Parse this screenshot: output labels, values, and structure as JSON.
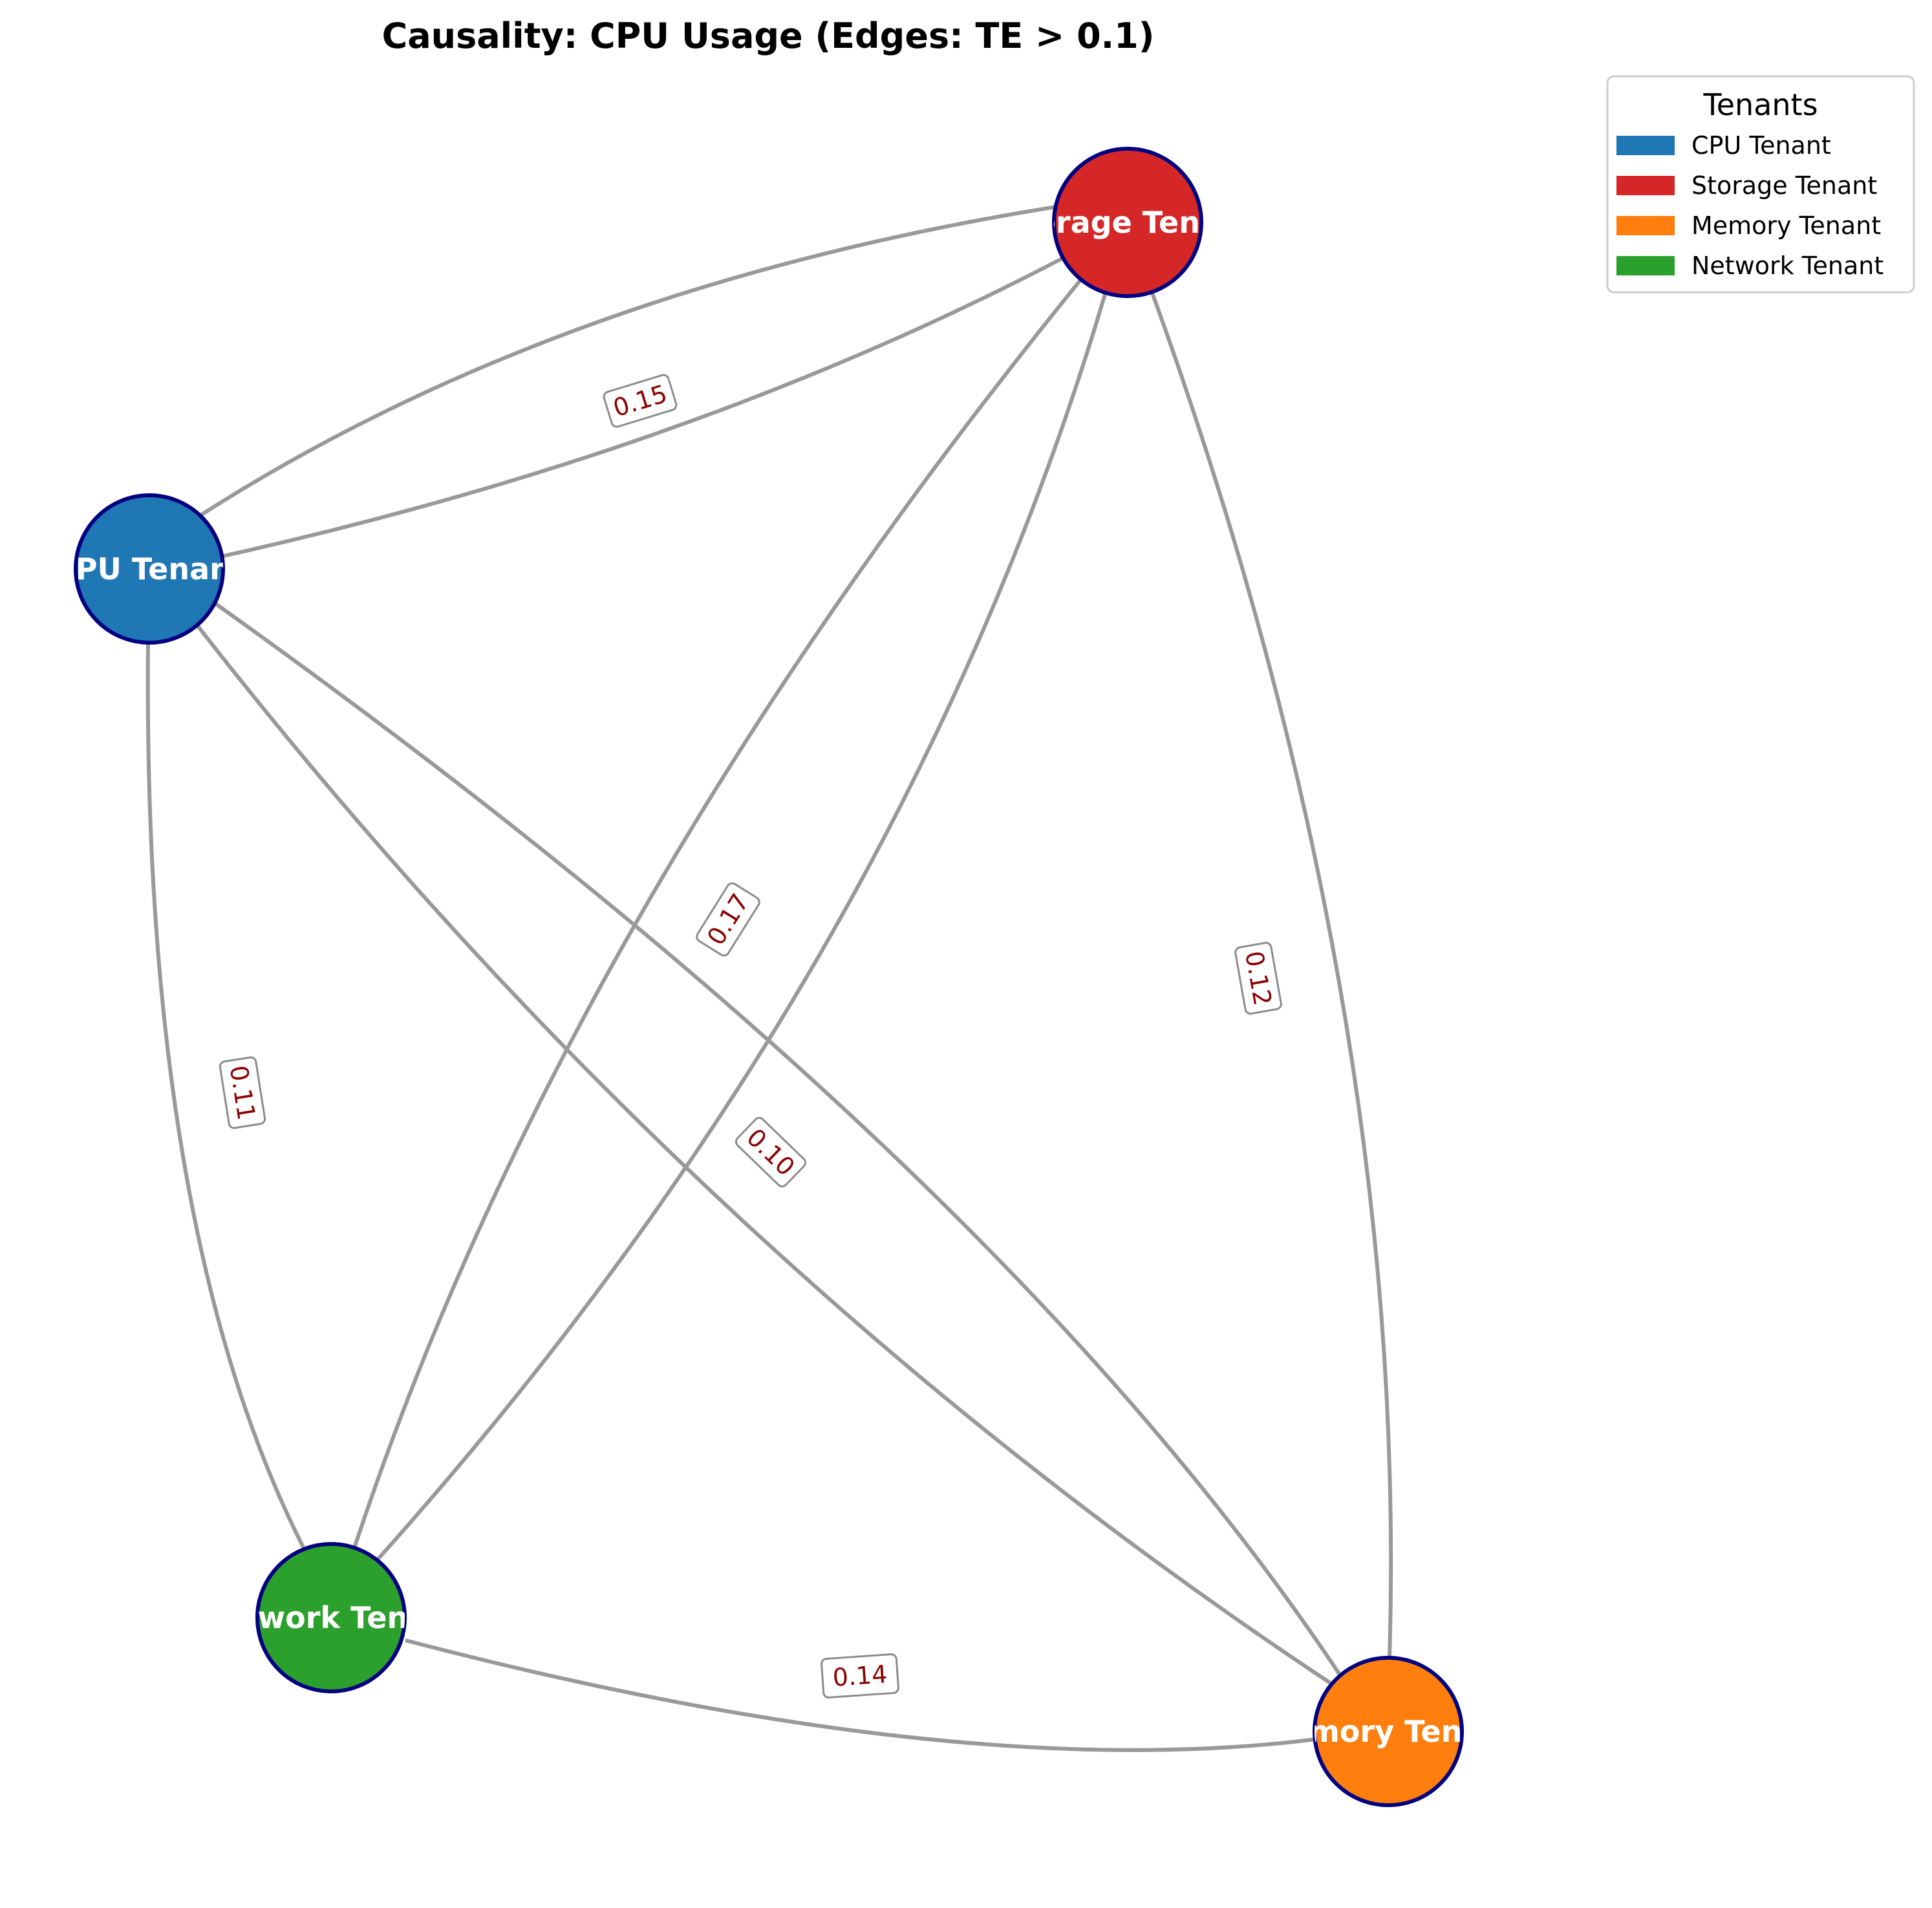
{
  "title": "Causality: CPU Usage (Edges: TE > 0.1)",
  "colors": {
    "cpu": "#1f77b4",
    "storage": "#d62728",
    "memory": "#ff7f0e",
    "network": "#2ca02c",
    "node_border": "#000080",
    "edge": "#999999",
    "edge_label": "#8b0000"
  },
  "nodes": [
    {
      "id": "cpu",
      "label": "CPU Tenant",
      "color": "#1f77b4"
    },
    {
      "id": "storage",
      "label": "Storage Tenant",
      "color": "#d62728"
    },
    {
      "id": "network",
      "label": "Network Tenant",
      "color": "#2ca02c"
    },
    {
      "id": "memory",
      "label": "Memory Tenant",
      "color": "#ff7f0e"
    }
  ],
  "edges": [
    {
      "source": "cpu",
      "target": "storage",
      "weight": "0.15"
    },
    {
      "source": "storage",
      "target": "cpu",
      "weight": ""
    },
    {
      "source": "storage",
      "target": "network",
      "weight": "0.17"
    },
    {
      "source": "network",
      "target": "storage",
      "weight": ""
    },
    {
      "source": "storage",
      "target": "memory",
      "weight": "0.12"
    },
    {
      "source": "cpu",
      "target": "network",
      "weight": "0.11"
    },
    {
      "source": "cpu",
      "target": "memory",
      "weight": "0.10"
    },
    {
      "source": "memory",
      "target": "cpu",
      "weight": ""
    },
    {
      "source": "network",
      "target": "memory",
      "weight": "0.14"
    }
  ],
  "legend": {
    "title": "Tenants",
    "items": [
      {
        "label": "CPU Tenant",
        "color": "#1f77b4"
      },
      {
        "label": "Storage Tenant",
        "color": "#d62728"
      },
      {
        "label": "Memory Tenant",
        "color": "#ff7f0e"
      },
      {
        "label": "Network Tenant",
        "color": "#2ca02c"
      }
    ]
  }
}
